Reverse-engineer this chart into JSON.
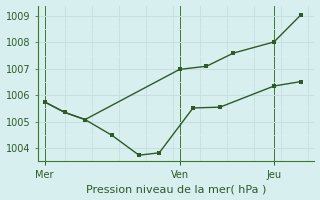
{
  "xlabel": "Pression niveau de la mer( hPa )",
  "bg_color": "#d8eff0",
  "grid_major_color": "#c8dfe0",
  "grid_minor_color": "#ddeef0",
  "line_color": "#2d5a27",
  "ylim": [
    1003.5,
    1009.4
  ],
  "yticks": [
    1004,
    1005,
    1006,
    1007,
    1008,
    1009
  ],
  "xtick_labels": [
    "Mer",
    "Ven",
    "Jeu"
  ],
  "xtick_positions": [
    0.5,
    10.5,
    17.5
  ],
  "vline_positions": [
    0.5,
    10.5,
    17.5
  ],
  "line1_x": [
    0.5,
    2.0,
    3.5,
    5.5,
    7.5,
    9.0,
    11.5,
    13.5,
    17.5,
    19.5
  ],
  "line1_y": [
    1005.75,
    1005.35,
    1005.08,
    1004.48,
    1003.73,
    1003.82,
    1005.52,
    1005.55,
    1006.35,
    1006.52
  ],
  "line2_x": [
    0.5,
    2.0,
    3.5,
    10.5,
    12.5,
    14.5,
    17.5,
    19.5
  ],
  "line2_y": [
    1005.75,
    1005.35,
    1005.08,
    1006.98,
    1007.1,
    1007.6,
    1008.02,
    1009.05
  ],
  "xlim": [
    0,
    20.5
  ],
  "xlabel_fontsize": 8,
  "tick_fontsize": 7
}
